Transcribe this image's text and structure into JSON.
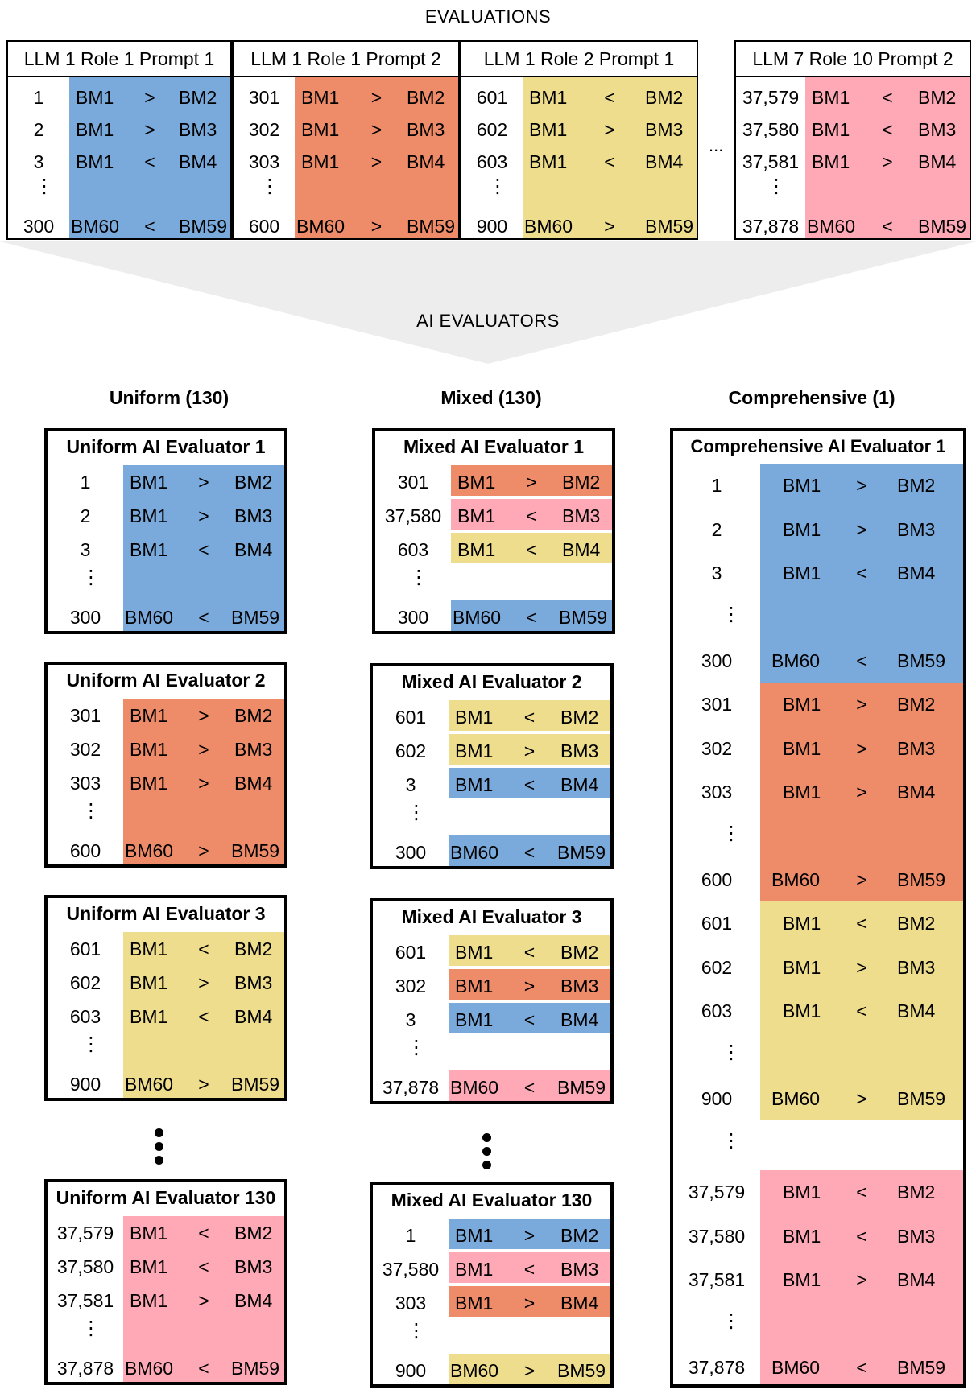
{
  "colors": {
    "blue": "#7AAADC",
    "orange": "#EE8B68",
    "yellow": "#EDDD8C",
    "pink": "#FFA8B6",
    "funnel": "#EDEDED"
  },
  "evaluations": {
    "title": "EVALUATIONS",
    "ellipsis": "...",
    "tables": [
      {
        "header": "LLM 1 Role 1 Prompt 1",
        "color": "blue",
        "rows": [
          [
            "1",
            "BM1",
            ">",
            "BM2"
          ],
          [
            "2",
            "BM1",
            ">",
            "BM3"
          ],
          [
            "3",
            "BM1",
            "<",
            "BM4"
          ],
          [
            "300",
            "BM60",
            "<",
            "BM59"
          ]
        ]
      },
      {
        "header": "LLM 1 Role 1 Prompt 2",
        "color": "orange",
        "rows": [
          [
            "301",
            "BM1",
            ">",
            "BM2"
          ],
          [
            "302",
            "BM1",
            ">",
            "BM3"
          ],
          [
            "303",
            "BM1",
            ">",
            "BM4"
          ],
          [
            "600",
            "BM60",
            ">",
            "BM59"
          ]
        ]
      },
      {
        "header": "LLM 1 Role 2 Prompt 1",
        "color": "yellow",
        "rows": [
          [
            "601",
            "BM1",
            "<",
            "BM2"
          ],
          [
            "602",
            "BM1",
            ">",
            "BM3"
          ],
          [
            "603",
            "BM1",
            "<",
            "BM4"
          ],
          [
            "900",
            "BM60",
            ">",
            "BM59"
          ]
        ]
      },
      {
        "header": "LLM 7 Role 10 Prompt 2",
        "color": "pink",
        "rows": [
          [
            "37,579",
            "BM1",
            "<",
            "BM2"
          ],
          [
            "37,580",
            "BM1",
            "<",
            "BM3"
          ],
          [
            "37,581",
            "BM1",
            ">",
            "BM4"
          ],
          [
            "37,878",
            "BM60",
            "<",
            "BM59"
          ]
        ]
      }
    ]
  },
  "ai_evaluators": {
    "title": "AI EVALUATORS",
    "uniform": {
      "header": "Uniform (130)",
      "boxes": [
        {
          "title": "Uniform AI Evaluator 1",
          "rows": [
            [
              "1",
              "BM1",
              ">",
              "BM2",
              "blue"
            ],
            [
              "2",
              "BM1",
              ">",
              "BM3",
              "blue"
            ],
            [
              "3",
              "BM1",
              "<",
              "BM4",
              "blue"
            ],
            [
              "300",
              "BM60",
              "<",
              "BM59",
              "blue"
            ]
          ]
        },
        {
          "title": "Uniform AI Evaluator 2",
          "rows": [
            [
              "301",
              "BM1",
              ">",
              "BM2",
              "orange"
            ],
            [
              "302",
              "BM1",
              ">",
              "BM3",
              "orange"
            ],
            [
              "303",
              "BM1",
              ">",
              "BM4",
              "orange"
            ],
            [
              "600",
              "BM60",
              ">",
              "BM59",
              "orange"
            ]
          ]
        },
        {
          "title": "Uniform AI Evaluator 3",
          "rows": [
            [
              "601",
              "BM1",
              "<",
              "BM2",
              "yellow"
            ],
            [
              "602",
              "BM1",
              ">",
              "BM3",
              "yellow"
            ],
            [
              "603",
              "BM1",
              "<",
              "BM4",
              "yellow"
            ],
            [
              "900",
              "BM60",
              ">",
              "BM59",
              "yellow"
            ]
          ]
        },
        {
          "title": "Uniform AI Evaluator 130",
          "rows": [
            [
              "37,579",
              "BM1",
              "<",
              "BM2",
              "pink"
            ],
            [
              "37,580",
              "BM1",
              "<",
              "BM3",
              "pink"
            ],
            [
              "37,581",
              "BM1",
              ">",
              "BM4",
              "pink"
            ],
            [
              "37,878",
              "BM60",
              "<",
              "BM59",
              "pink"
            ]
          ]
        }
      ]
    },
    "mixed": {
      "header": "Mixed (130)",
      "boxes": [
        {
          "title": "Mixed AI Evaluator 1",
          "rows": [
            [
              "301",
              "BM1",
              ">",
              "BM2",
              "orange"
            ],
            [
              "37,580",
              "BM1",
              "<",
              "BM3",
              "pink"
            ],
            [
              "603",
              "BM1",
              "<",
              "BM4",
              "yellow"
            ],
            [
              "300",
              "BM60",
              "<",
              "BM59",
              "blue"
            ]
          ]
        },
        {
          "title": "Mixed AI Evaluator 2",
          "rows": [
            [
              "601",
              "BM1",
              "<",
              "BM2",
              "yellow"
            ],
            [
              "602",
              "BM1",
              ">",
              "BM3",
              "yellow"
            ],
            [
              "3",
              "BM1",
              "<",
              "BM4",
              "blue"
            ],
            [
              "300",
              "BM60",
              "<",
              "BM59",
              "blue"
            ]
          ]
        },
        {
          "title": "Mixed AI Evaluator 3",
          "rows": [
            [
              "601",
              "BM1",
              "<",
              "BM2",
              "yellow"
            ],
            [
              "302",
              "BM1",
              ">",
              "BM3",
              "orange"
            ],
            [
              "3",
              "BM1",
              "<",
              "BM4",
              "blue"
            ],
            [
              "37,878",
              "BM60",
              "<",
              "BM59",
              "pink"
            ]
          ]
        },
        {
          "title": "Mixed AI Evaluator 130",
          "rows": [
            [
              "1",
              "BM1",
              ">",
              "BM2",
              "blue"
            ],
            [
              "37,580",
              "BM1",
              "<",
              "BM3",
              "pink"
            ],
            [
              "303",
              "BM1",
              ">",
              "BM4",
              "orange"
            ],
            [
              "900",
              "BM60",
              ">",
              "BM59",
              "yellow"
            ]
          ]
        }
      ]
    },
    "comprehensive": {
      "header": "Comprehensive (1)",
      "title": "Comprehensive AI Evaluator 1",
      "groups": [
        {
          "color": "blue",
          "rows": [
            [
              "1",
              "BM1",
              ">",
              "BM2"
            ],
            [
              "2",
              "BM1",
              ">",
              "BM3"
            ],
            [
              "3",
              "BM1",
              "<",
              "BM4"
            ],
            [
              "300",
              "BM60",
              "<",
              "BM59"
            ]
          ]
        },
        {
          "color": "orange",
          "rows": [
            [
              "301",
              "BM1",
              ">",
              "BM2"
            ],
            [
              "302",
              "BM1",
              ">",
              "BM3"
            ],
            [
              "303",
              "BM1",
              ">",
              "BM4"
            ],
            [
              "600",
              "BM60",
              ">",
              "BM59"
            ]
          ]
        },
        {
          "color": "yellow",
          "rows": [
            [
              "601",
              "BM1",
              "<",
              "BM2"
            ],
            [
              "602",
              "BM1",
              ">",
              "BM3"
            ],
            [
              "603",
              "BM1",
              "<",
              "BM4"
            ],
            [
              "900",
              "BM60",
              ">",
              "BM59"
            ]
          ]
        },
        {
          "color": "pink",
          "rows": [
            [
              "37,579",
              "BM1",
              "<",
              "BM2"
            ],
            [
              "37,580",
              "BM1",
              "<",
              "BM3"
            ],
            [
              "37,581",
              "BM1",
              ">",
              "BM4"
            ],
            [
              "37,878",
              "BM60",
              "<",
              "BM59"
            ]
          ]
        }
      ]
    }
  }
}
